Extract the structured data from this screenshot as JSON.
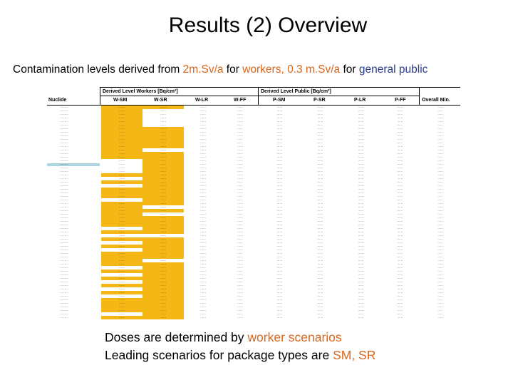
{
  "slide": {
    "title": "Results (2) Overview",
    "subtitle": {
      "prefix": "Contamination levels derived from ",
      "hl1": "2m.Sv/a",
      "mid1": " for ",
      "hl2": "workers,",
      "mid2": " ",
      "hl3": "0.3 m.Sv/a",
      "mid3": " for ",
      "hl4": "general public"
    },
    "notes": {
      "line1_prefix": "Doses are determined by ",
      "line1_hl": "worker scenarios",
      "line2_prefix": "Leading scenarios for package types are ",
      "line2_hl": "SM, SR"
    },
    "colors": {
      "orange": "#d9661a",
      "blue": "#2a3a8c",
      "highlight": "#f5b716",
      "accent": "#a9d4e0"
    }
  },
  "table": {
    "group_headers": {
      "workers": "Derived Level Workers [Bq/cm²]",
      "public": "Derived Level Public [Bq/cm²]"
    },
    "headers": {
      "nuclide": "Nuclide",
      "w_sm": "W-SM",
      "w_sr": "W-SR",
      "w_lr": "W-LR",
      "w_ff": "W-FF",
      "p_sm": "P-SM",
      "p_sr": "P-SR",
      "p_lr": "P-LR",
      "p_ff": "P-FF",
      "overall": "Overall Min."
    }
  }
}
